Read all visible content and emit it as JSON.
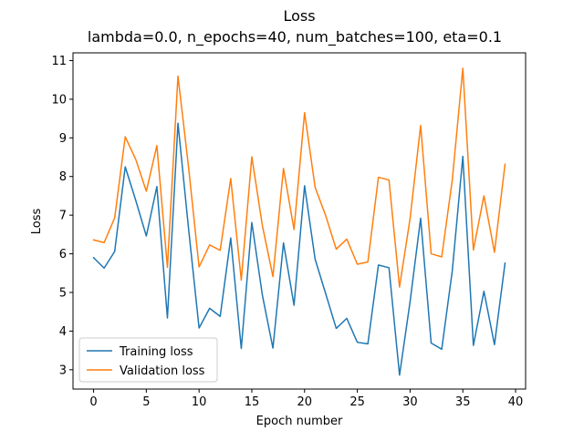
{
  "chart_data": {
    "type": "line",
    "title": "Loss",
    "subtitle": "lambda=0.0, n_epochs=40, num_batches=100, eta=0.1",
    "xlabel": "Epoch number",
    "ylabel": "Loss",
    "xlim": [
      -1.95,
      40.95
    ],
    "ylim": [
      2.5,
      11.2
    ],
    "xticks": [
      0,
      5,
      10,
      15,
      20,
      25,
      30,
      35,
      40
    ],
    "yticks": [
      3,
      4,
      5,
      6,
      7,
      8,
      9,
      10,
      11
    ],
    "grid": false,
    "legend_position": "bottom-left",
    "x": [
      0,
      1,
      2,
      3,
      4,
      5,
      6,
      7,
      8,
      9,
      10,
      11,
      12,
      13,
      14,
      15,
      16,
      17,
      18,
      19,
      20,
      21,
      22,
      23,
      24,
      25,
      26,
      27,
      28,
      29,
      30,
      31,
      32,
      33,
      34,
      35,
      36,
      37,
      38,
      39
    ],
    "series": [
      {
        "name": "Training loss",
        "color": "#1f77b4",
        "values": [
          5.9,
          5.63,
          6.06,
          8.25,
          7.38,
          6.46,
          7.74,
          4.34,
          9.38,
          6.66,
          4.08,
          4.59,
          4.38,
          6.41,
          3.55,
          6.81,
          4.93,
          3.56,
          6.28,
          4.67,
          7.76,
          5.86,
          4.97,
          4.07,
          4.33,
          3.71,
          3.67,
          5.71,
          5.64,
          2.86,
          4.76,
          6.92,
          3.69,
          3.53,
          5.56,
          8.52,
          3.63,
          5.03,
          3.65,
          5.76
        ]
      },
      {
        "name": "Validation loss",
        "color": "#ff7f0e",
        "values": [
          6.36,
          6.29,
          6.93,
          9.03,
          8.44,
          7.62,
          8.8,
          5.65,
          10.6,
          8.25,
          5.66,
          6.23,
          6.09,
          7.95,
          5.32,
          8.51,
          6.73,
          5.41,
          8.21,
          6.63,
          9.65,
          7.72,
          6.99,
          6.12,
          6.38,
          5.73,
          5.79,
          7.98,
          7.91,
          5.14,
          6.91,
          9.32,
          6.0,
          5.92,
          7.91,
          10.8,
          6.1,
          7.5,
          6.04,
          8.32
        ]
      }
    ]
  }
}
